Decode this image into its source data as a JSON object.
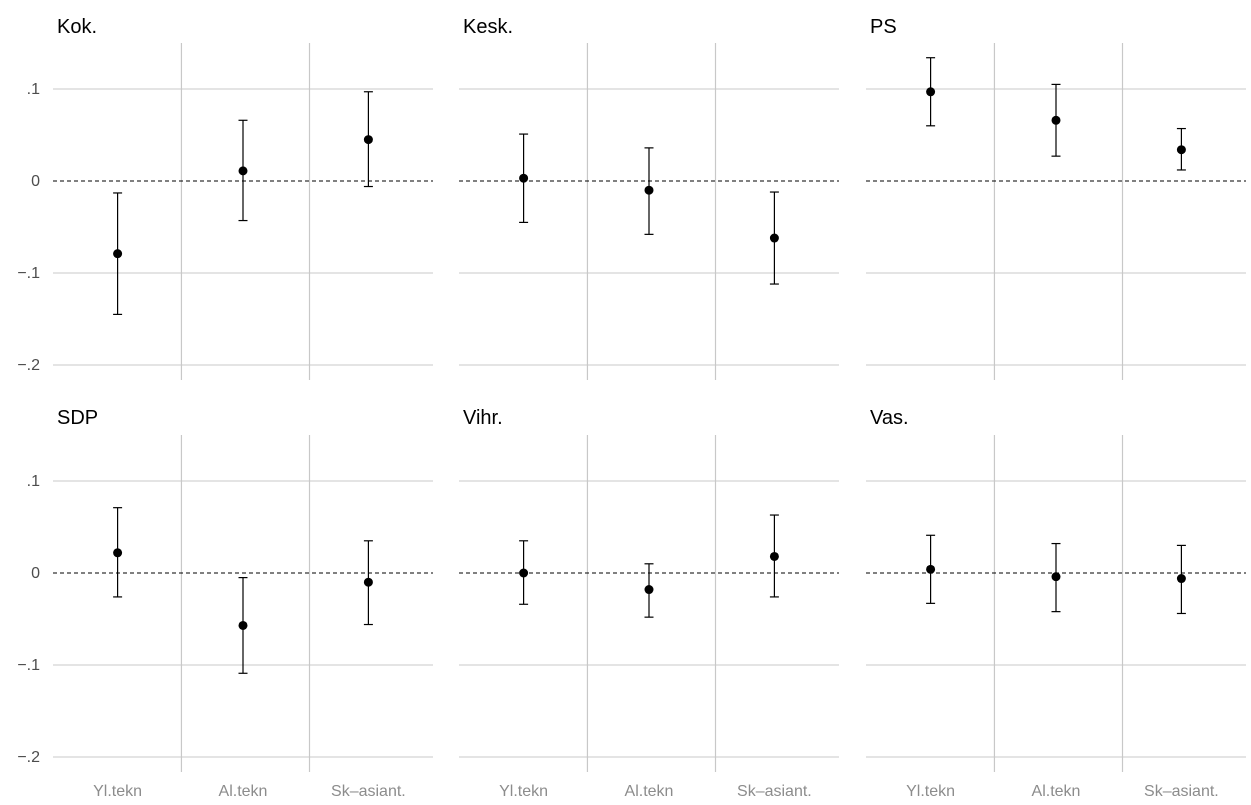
{
  "chart_data": {
    "type": "scatter",
    "facets_layout": "2 rows x 3 columns",
    "categories": [
      "Yl.tekn",
      "Al.tekn",
      "Sk–asiant."
    ],
    "y_ticks": [
      0.1,
      0,
      -0.1,
      -0.2
    ],
    "y_tick_labels": [
      ".1",
      "0",
      "−.1",
      "−.2"
    ],
    "ylim": [
      -0.2,
      0.15
    ],
    "grid": true,
    "reference_line": {
      "y": 0,
      "style": "dashed"
    },
    "panels": [
      {
        "title": "Kok.",
        "points": [
          {
            "category": "Yl.tekn",
            "estimate": -0.079,
            "ci_low": -0.145,
            "ci_high": -0.013
          },
          {
            "category": "Al.tekn",
            "estimate": 0.011,
            "ci_low": -0.043,
            "ci_high": 0.066
          },
          {
            "category": "Sk–asiant.",
            "estimate": 0.045,
            "ci_low": -0.006,
            "ci_high": 0.097
          }
        ]
      },
      {
        "title": "Kesk.",
        "points": [
          {
            "category": "Yl.tekn",
            "estimate": 0.003,
            "ci_low": -0.045,
            "ci_high": 0.051
          },
          {
            "category": "Al.tekn",
            "estimate": -0.01,
            "ci_low": -0.058,
            "ci_high": 0.036
          },
          {
            "category": "Sk–asiant.",
            "estimate": -0.062,
            "ci_low": -0.112,
            "ci_high": -0.012
          }
        ]
      },
      {
        "title": "PS",
        "points": [
          {
            "category": "Yl.tekn",
            "estimate": 0.097,
            "ci_low": 0.06,
            "ci_high": 0.134
          },
          {
            "category": "Al.tekn",
            "estimate": 0.066,
            "ci_low": 0.027,
            "ci_high": 0.105
          },
          {
            "category": "Sk–asiant.",
            "estimate": 0.034,
            "ci_low": 0.012,
            "ci_high": 0.057
          }
        ]
      },
      {
        "title": "SDP",
        "points": [
          {
            "category": "Yl.tekn",
            "estimate": 0.022,
            "ci_low": -0.026,
            "ci_high": 0.071
          },
          {
            "category": "Al.tekn",
            "estimate": -0.057,
            "ci_low": -0.109,
            "ci_high": -0.005
          },
          {
            "category": "Sk–asiant.",
            "estimate": -0.01,
            "ci_low": -0.056,
            "ci_high": 0.035
          }
        ]
      },
      {
        "title": "Vihr.",
        "points": [
          {
            "category": "Yl.tekn",
            "estimate": 0.0,
            "ci_low": -0.034,
            "ci_high": 0.035
          },
          {
            "category": "Al.tekn",
            "estimate": -0.018,
            "ci_low": -0.048,
            "ci_high": 0.01
          },
          {
            "category": "Sk–asiant.",
            "estimate": 0.018,
            "ci_low": -0.026,
            "ci_high": 0.063
          }
        ]
      },
      {
        "title": "Vas.",
        "points": [
          {
            "category": "Yl.tekn",
            "estimate": 0.004,
            "ci_low": -0.033,
            "ci_high": 0.041
          },
          {
            "category": "Al.tekn",
            "estimate": -0.004,
            "ci_low": -0.042,
            "ci_high": 0.032
          },
          {
            "category": "Sk–asiant.",
            "estimate": -0.006,
            "ci_low": -0.044,
            "ci_high": 0.03
          }
        ]
      }
    ]
  }
}
